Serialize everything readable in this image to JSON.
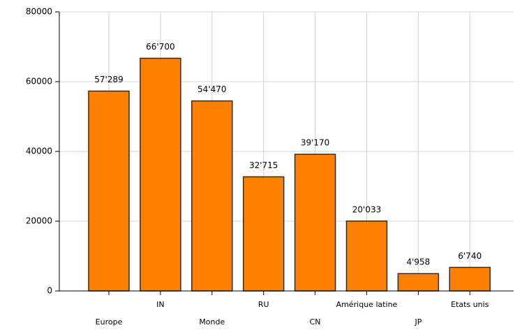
{
  "chart_data": {
    "type": "bar",
    "categories": [
      "Europe",
      "IN",
      "Monde",
      "RU",
      "CN",
      "Amérique latine",
      "JP",
      "Etats unis"
    ],
    "values": [
      57289,
      66700,
      54470,
      32715,
      39170,
      20033,
      4958,
      6740
    ],
    "value_labels": [
      "57'289",
      "66'700",
      "54'470",
      "32'715",
      "39'170",
      "20'033",
      "4'958",
      "6'740"
    ],
    "color": "#ff8000",
    "ylim": [
      0,
      80000
    ],
    "yticks": [
      0,
      20000,
      40000,
      60000,
      80000
    ],
    "grid": true
  }
}
